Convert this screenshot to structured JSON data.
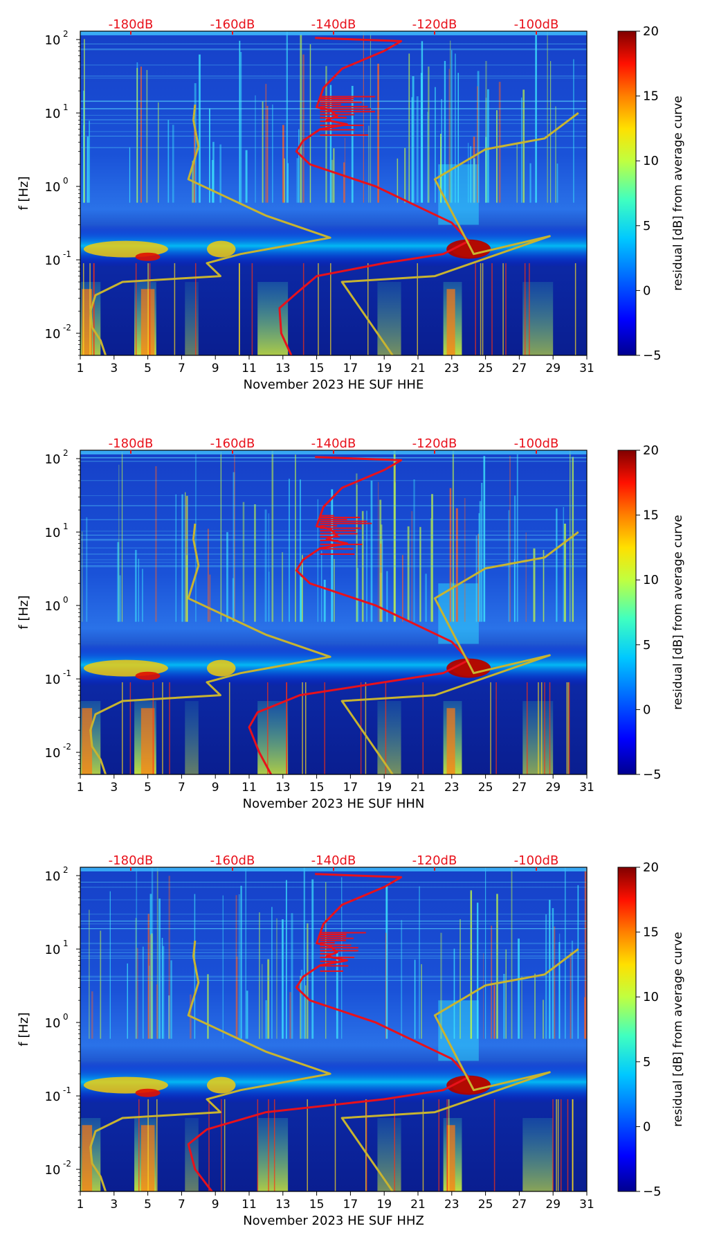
{
  "chart_data": [
    {
      "type": "heatmap",
      "xlabel": "November 2023 HE SUF  HHE",
      "ylabel": "f [Hz]",
      "x_ticks": [
        "1",
        "3",
        "5",
        "7",
        "9",
        "11",
        "13",
        "15",
        "17",
        "19",
        "21",
        "23",
        "25",
        "27",
        "29",
        "31"
      ],
      "x_range": [
        1,
        31
      ],
      "y_ticks": [
        "10",
        "10",
        "10",
        "10",
        "10"
      ],
      "y_tick_exponents": [
        "2",
        "1",
        "0",
        "-1",
        "-2"
      ],
      "y_range": [
        0.005,
        130
      ],
      "top_axis_labels": [
        "-180dB",
        "-160dB",
        "-140dB",
        "-120dB",
        "-100dB"
      ],
      "colorbar": {
        "label": "residual [dB] from average curve",
        "ticks": [
          "20",
          "15",
          "10",
          "5",
          "0",
          "−5"
        ],
        "range": [
          -5,
          20
        ]
      },
      "series": [
        {
          "name": "average PSD (red)",
          "color": "#e8111b",
          "x_day": [
            14.9,
            20.0,
            19.0,
            16.5,
            15.4,
            15.0,
            15.8,
            16.2,
            15.6,
            16.8,
            15.2,
            14.2,
            13.8,
            14.6,
            18.5,
            23.0,
            24.0,
            22.5,
            19.0,
            15.0,
            13.8,
            12.8,
            12.9,
            13.5
          ],
          "f_hz": [
            105,
            95,
            70,
            40,
            22,
            12,
            11,
            9,
            8,
            7,
            6,
            4.2,
            3.0,
            2.0,
            1.0,
            0.32,
            0.18,
            0.12,
            0.09,
            0.06,
            0.035,
            0.022,
            0.01,
            0.005
          ]
        },
        {
          "name": "New Low Noise Model (yellow)",
          "color": "#c8b430",
          "x_day": [
            2.5,
            2.2,
            1.7,
            1.6,
            1.9,
            3.5,
            9.3,
            8.5,
            10.5,
            15.8,
            12.0,
            7.4,
            8.0,
            7.7,
            7.8
          ],
          "f_hz": [
            0.005,
            0.008,
            0.012,
            0.02,
            0.033,
            0.05,
            0.06,
            0.09,
            0.12,
            0.2,
            0.4,
            1.25,
            3.5,
            8.0,
            13.0
          ]
        },
        {
          "name": "New High Noise Model (yellow)",
          "color": "#c8b430",
          "x_day": [
            19.5,
            16.5,
            22.0,
            28.8,
            24.3,
            22.0,
            25.0,
            28.5,
            30.5
          ],
          "f_hz": [
            0.005,
            0.05,
            0.06,
            0.21,
            0.12,
            1.25,
            3.2,
            4.5,
            10.0
          ]
        }
      ]
    },
    {
      "type": "heatmap",
      "xlabel": "November 2023 HE SUF  HHN",
      "ylabel": "f [Hz]",
      "x_ticks": [
        "1",
        "3",
        "5",
        "7",
        "9",
        "11",
        "13",
        "15",
        "17",
        "19",
        "21",
        "23",
        "25",
        "27",
        "29",
        "31"
      ],
      "x_range": [
        1,
        31
      ],
      "y_ticks": [
        "10",
        "10",
        "10",
        "10",
        "10"
      ],
      "y_tick_exponents": [
        "2",
        "1",
        "0",
        "-1",
        "-2"
      ],
      "y_range": [
        0.005,
        130
      ],
      "top_axis_labels": [
        "-180dB",
        "-160dB",
        "-140dB",
        "-120dB",
        "-100dB"
      ],
      "colorbar": {
        "label": "residual [dB] from average curve",
        "ticks": [
          "20",
          "15",
          "10",
          "5",
          "0",
          "−5"
        ],
        "range": [
          -5,
          20
        ]
      },
      "series": [
        {
          "name": "average PSD (red)",
          "color": "#e8111b",
          "x_day": [
            14.9,
            20.0,
            19.0,
            16.5,
            15.4,
            15.0,
            15.8,
            16.2,
            15.6,
            16.8,
            15.2,
            14.2,
            13.8,
            14.6,
            18.5,
            23.0,
            24.0,
            22.5,
            19.0,
            14.0,
            11.5,
            11.0,
            11.6,
            12.3
          ],
          "f_hz": [
            105,
            95,
            70,
            40,
            22,
            12,
            11,
            9,
            8,
            7,
            6,
            4.2,
            3.0,
            2.0,
            1.0,
            0.32,
            0.18,
            0.12,
            0.09,
            0.06,
            0.035,
            0.022,
            0.01,
            0.005
          ]
        },
        {
          "name": "New Low Noise Model (yellow)",
          "color": "#c8b430",
          "x_day": [
            2.5,
            2.2,
            1.7,
            1.6,
            1.9,
            3.5,
            9.3,
            8.5,
            10.5,
            15.8,
            12.0,
            7.4,
            8.0,
            7.7,
            7.8
          ],
          "f_hz": [
            0.005,
            0.008,
            0.012,
            0.02,
            0.033,
            0.05,
            0.06,
            0.09,
            0.12,
            0.2,
            0.4,
            1.25,
            3.5,
            8.0,
            13.0
          ]
        },
        {
          "name": "New High Noise Model (yellow)",
          "color": "#c8b430",
          "x_day": [
            19.5,
            16.5,
            22.0,
            28.8,
            24.3,
            22.0,
            25.0,
            28.5,
            30.5
          ],
          "f_hz": [
            0.005,
            0.05,
            0.06,
            0.21,
            0.12,
            1.25,
            3.2,
            4.5,
            10.0
          ]
        }
      ]
    },
    {
      "type": "heatmap",
      "xlabel": "November 2023 HE SUF  HHZ",
      "ylabel": "f [Hz]",
      "x_ticks": [
        "1",
        "3",
        "5",
        "7",
        "9",
        "11",
        "13",
        "15",
        "17",
        "19",
        "21",
        "23",
        "25",
        "27",
        "29",
        "31"
      ],
      "x_range": [
        1,
        31
      ],
      "y_ticks": [
        "10",
        "10",
        "10",
        "10",
        "10"
      ],
      "y_tick_exponents": [
        "2",
        "1",
        "0",
        "-1",
        "-2"
      ],
      "y_range": [
        0.005,
        130
      ],
      "top_axis_labels": [
        "-180dB",
        "-160dB",
        "-140dB",
        "-120dB",
        "-100dB"
      ],
      "colorbar": {
        "label": "residual [dB] from average curve",
        "ticks": [
          "20",
          "15",
          "10",
          "5",
          "0",
          "−5"
        ],
        "range": [
          -5,
          20
        ]
      },
      "series": [
        {
          "name": "average PSD (red)",
          "color": "#e8111b",
          "x_day": [
            14.9,
            20.0,
            19.0,
            16.5,
            15.4,
            15.0,
            15.8,
            16.2,
            15.6,
            16.8,
            15.2,
            14.2,
            13.8,
            14.6,
            18.5,
            23.0,
            24.0,
            22.5,
            19.0,
            12.0,
            8.5,
            7.4,
            7.8,
            8.8
          ],
          "f_hz": [
            105,
            95,
            70,
            40,
            22,
            12,
            11,
            9,
            8,
            7,
            6,
            4.2,
            3.0,
            2.0,
            1.0,
            0.32,
            0.18,
            0.12,
            0.09,
            0.06,
            0.035,
            0.022,
            0.01,
            0.005
          ]
        },
        {
          "name": "New Low Noise Model (yellow)",
          "color": "#c8b430",
          "x_day": [
            2.5,
            2.2,
            1.7,
            1.6,
            1.9,
            3.5,
            9.3,
            8.5,
            10.5,
            15.8,
            12.0,
            7.4,
            8.0,
            7.7,
            7.8
          ],
          "f_hz": [
            0.005,
            0.008,
            0.012,
            0.02,
            0.033,
            0.05,
            0.06,
            0.09,
            0.12,
            0.2,
            0.4,
            1.25,
            3.5,
            8.0,
            13.0
          ]
        },
        {
          "name": "New High Noise Model (yellow)",
          "color": "#c8b430",
          "x_day": [
            19.5,
            16.5,
            22.0,
            28.8,
            24.3,
            22.0,
            25.0,
            28.5,
            30.5
          ],
          "f_hz": [
            0.005,
            0.05,
            0.06,
            0.21,
            0.12,
            1.25,
            3.2,
            4.5,
            10.0
          ]
        }
      ]
    }
  ],
  "colors": {
    "background_dark": "#0a1f9e",
    "background_mid": "#1a4fd6",
    "colormap": [
      "#00008f",
      "#0000ff",
      "#0080ff",
      "#00ffff",
      "#80ff80",
      "#ffff00",
      "#ff8000",
      "#ff0000",
      "#800000"
    ],
    "top_labels": "#e8111b"
  }
}
